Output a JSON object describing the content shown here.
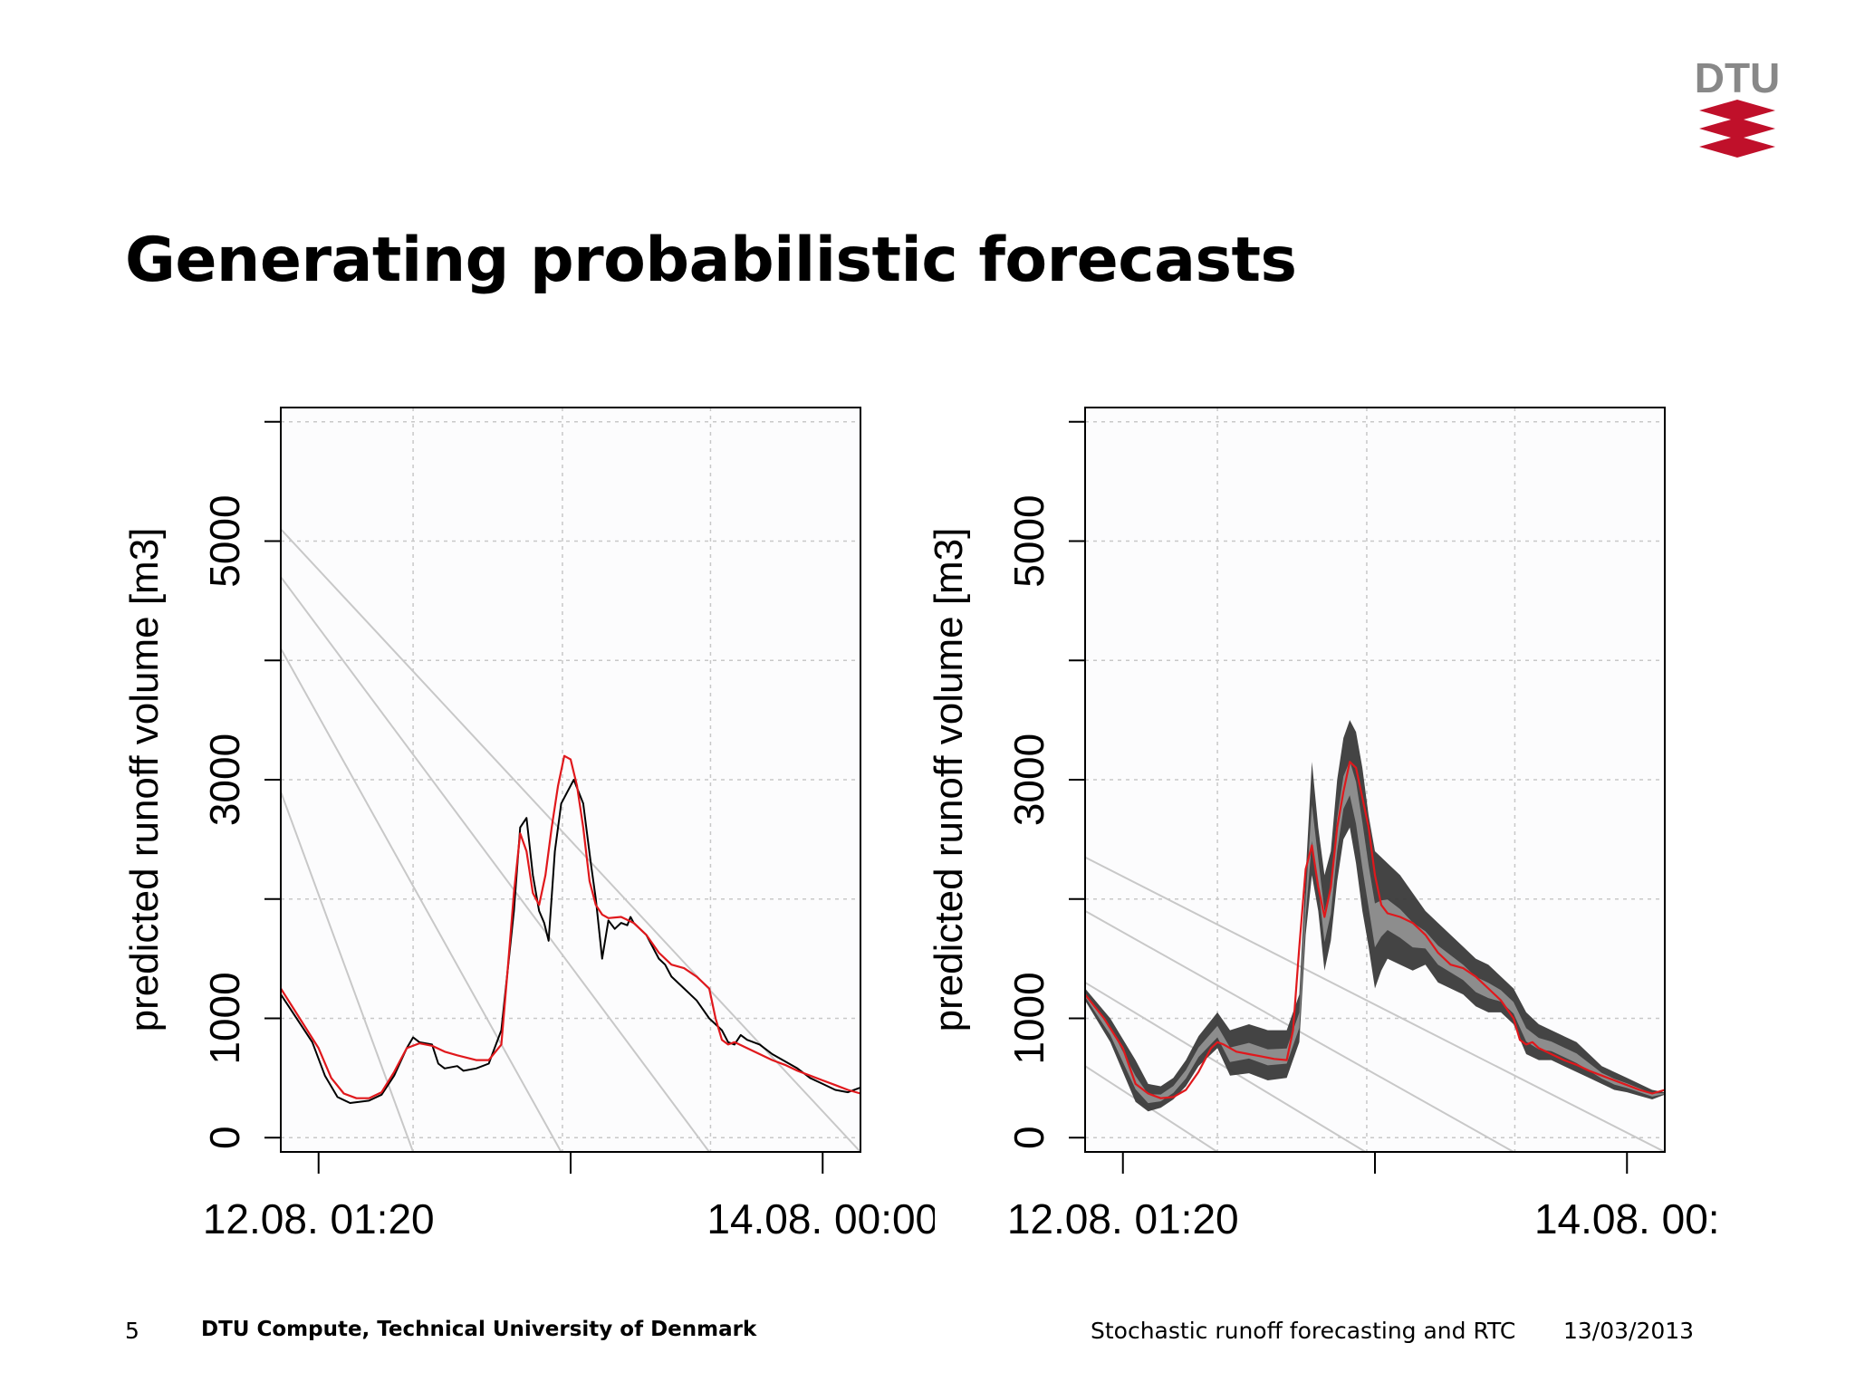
{
  "slide": {
    "title": "Generating probabilistic forecasts",
    "logo_text": "DTU",
    "page_number": "5",
    "organization": "DTU Compute, Technical University of Denmark",
    "talk_title": "Stochastic runoff forecasting and RTC",
    "date": "13/03/2013"
  },
  "colors": {
    "observed": "#000000",
    "forecast": "#e0181c",
    "ensemble": "#555555",
    "guide_lines": "#c8c8c8",
    "grid": "#c8c8c8",
    "logo_red": "#c0102a",
    "logo_gray": "#888888"
  },
  "chart_data": [
    {
      "type": "line",
      "ylabel": "predicted runoff volume [m3]",
      "ylim": [
        -120,
        6120
      ],
      "y_ticks": [
        0,
        1000,
        2000,
        3000,
        4000,
        5000,
        6000
      ],
      "y_tick_labels": [
        "0",
        "1000",
        "",
        "3000",
        "",
        "5000",
        ""
      ],
      "xlim": [
        -6,
        86
      ],
      "x_ticks": [
        0,
        40,
        80
      ],
      "x_tick_labels": [
        "12.08. 01:20",
        "",
        "14.08. 00:00"
      ],
      "x_grid": [
        15,
        38.7,
        62.2,
        86
      ],
      "grid": true,
      "guide_lines": [
        {
          "start": [
            -6,
            5100
          ],
          "end": [
            86,
            -120
          ]
        },
        {
          "start": [
            -6,
            4700
          ],
          "end": [
            62,
            -120
          ]
        },
        {
          "start": [
            -6,
            4100
          ],
          "end": [
            38.5,
            -120
          ]
        },
        {
          "start": [
            -6,
            2900
          ],
          "end": [
            15,
            -120
          ]
        }
      ],
      "series": [
        {
          "role": "observed",
          "x": [
            -6,
            -3,
            -1,
            1,
            3,
            5,
            8,
            10,
            12,
            14,
            15,
            16,
            18,
            19,
            20,
            22,
            23,
            25,
            27,
            29,
            31,
            32,
            33,
            34,
            35,
            35.8,
            36.5,
            37.5,
            38.5,
            39.5,
            40.5,
            42,
            43.2,
            44,
            45,
            46,
            47,
            48,
            49,
            49.5,
            50,
            51,
            52,
            54,
            55,
            56,
            58,
            60,
            62,
            64,
            65,
            66,
            67,
            68,
            70,
            72,
            74,
            76,
            78,
            80,
            82,
            84,
            86
          ],
          "y": [
            1200,
            960,
            800,
            520,
            340,
            290,
            310,
            360,
            520,
            750,
            840,
            800,
            780,
            620,
            580,
            600,
            560,
            580,
            620,
            900,
            1900,
            2600,
            2680,
            2200,
            1900,
            1800,
            1650,
            2400,
            2800,
            2900,
            3000,
            2800,
            2300,
            2000,
            1500,
            1820,
            1750,
            1800,
            1780,
            1850,
            1800,
            1750,
            1700,
            1500,
            1450,
            1350,
            1250,
            1150,
            1000,
            900,
            800,
            780,
            860,
            820,
            780,
            700,
            640,
            580,
            500,
            450,
            400,
            380,
            420
          ]
        },
        {
          "role": "forecast",
          "x": [
            -6,
            -3,
            0,
            2,
            4,
            6,
            8,
            10,
            12,
            14,
            16,
            18,
            20,
            22,
            25,
            27,
            29,
            30,
            31,
            32,
            33,
            34,
            35,
            36,
            37,
            38,
            39,
            40,
            41,
            42,
            43,
            44,
            45,
            46,
            48,
            50,
            52,
            54,
            56,
            58,
            60,
            62,
            63,
            64,
            65,
            66,
            68,
            70,
            72,
            74,
            76,
            78,
            80,
            82,
            84,
            86
          ],
          "y": [
            1250,
            1000,
            750,
            500,
            370,
            330,
            330,
            380,
            550,
            750,
            790,
            770,
            720,
            690,
            650,
            650,
            780,
            1400,
            2050,
            2550,
            2400,
            2050,
            1950,
            2200,
            2600,
            2950,
            3200,
            3170,
            2950,
            2600,
            2150,
            1950,
            1870,
            1840,
            1850,
            1800,
            1700,
            1550,
            1450,
            1420,
            1350,
            1250,
            1000,
            820,
            780,
            800,
            750,
            700,
            650,
            610,
            560,
            520,
            480,
            440,
            400,
            370
          ]
        }
      ]
    },
    {
      "type": "line",
      "ylabel": "predicted runoff volume [m3]",
      "ylim": [
        -120,
        6120
      ],
      "y_ticks": [
        0,
        1000,
        2000,
        3000,
        4000,
        5000,
        6000
      ],
      "y_tick_labels": [
        "0",
        "1000",
        "",
        "3000",
        "",
        "5000",
        ""
      ],
      "xlim": [
        -6,
        86
      ],
      "x_ticks": [
        0,
        40,
        80
      ],
      "x_tick_labels": [
        "12.08. 01:20",
        "",
        "14.08. 00:"
      ],
      "x_grid": [
        15,
        38.7,
        62.2,
        86
      ],
      "grid": true,
      "guide_lines": [
        {
          "start": [
            -6,
            2350
          ],
          "end": [
            86,
            -120
          ]
        },
        {
          "start": [
            -6,
            1900
          ],
          "end": [
            62,
            -120
          ]
        },
        {
          "start": [
            -6,
            1300
          ],
          "end": [
            38.5,
            -120
          ]
        },
        {
          "start": [
            -6,
            600
          ],
          "end": [
            15,
            -120
          ]
        }
      ],
      "series": [
        {
          "role": "ensemble_upper",
          "x": [
            -6,
            -2,
            2,
            4,
            6,
            8,
            10,
            12,
            15,
            17,
            20,
            23,
            26,
            28,
            29,
            30,
            31,
            32,
            33,
            34,
            35,
            36,
            37,
            38,
            39,
            40,
            41,
            42,
            44,
            46,
            48,
            50,
            52,
            54,
            56,
            58,
            60,
            62,
            64,
            66,
            68,
            70,
            72,
            74,
            76,
            78,
            80,
            82,
            84,
            86
          ],
          "y": [
            1250,
            1000,
            650,
            450,
            430,
            500,
            650,
            850,
            1050,
            900,
            950,
            900,
            900,
            1200,
            2200,
            3150,
            2600,
            2200,
            2400,
            3000,
            3350,
            3500,
            3400,
            3100,
            2700,
            2400,
            2350,
            2300,
            2200,
            2050,
            1900,
            1800,
            1700,
            1600,
            1500,
            1450,
            1350,
            1250,
            1050,
            950,
            900,
            850,
            800,
            700,
            600,
            550,
            500,
            450,
            400,
            380
          ]
        },
        {
          "role": "ensemble_lower",
          "x": [
            -6,
            -2,
            2,
            4,
            6,
            8,
            10,
            12,
            15,
            17,
            20,
            23,
            26,
            28,
            29,
            30,
            31,
            32,
            33,
            34,
            35,
            36,
            37,
            38,
            39,
            40,
            41,
            42,
            44,
            46,
            48,
            50,
            52,
            54,
            56,
            58,
            60,
            62,
            64,
            66,
            68,
            70,
            72,
            74,
            76,
            78,
            80,
            82,
            84,
            86
          ],
          "y": [
            1150,
            800,
            300,
            220,
            250,
            320,
            430,
            600,
            750,
            520,
            540,
            480,
            500,
            800,
            1700,
            2200,
            1900,
            1400,
            1650,
            2150,
            2500,
            2600,
            2300,
            1900,
            1600,
            1250,
            1400,
            1500,
            1450,
            1400,
            1450,
            1300,
            1250,
            1200,
            1100,
            1050,
            1050,
            950,
            700,
            650,
            650,
            600,
            550,
            500,
            450,
            400,
            380,
            350,
            320,
            360
          ]
        },
        {
          "role": "forecast",
          "x": [
            -6,
            -3,
            0,
            2,
            4,
            6,
            8,
            10,
            12,
            14,
            15,
            16,
            18,
            20,
            22,
            24,
            26,
            27,
            28,
            29,
            30,
            31,
            32,
            33,
            34,
            35,
            36,
            37,
            38,
            39,
            40,
            41,
            42,
            44,
            46,
            48,
            50,
            52,
            54,
            56,
            58,
            60,
            62,
            63,
            64,
            65,
            66,
            68,
            70,
            72,
            74,
            76,
            78,
            80,
            82,
            84,
            86
          ],
          "y": [
            1200,
            1000,
            750,
            450,
            370,
            330,
            340,
            400,
            550,
            750,
            800,
            780,
            720,
            700,
            680,
            660,
            650,
            900,
            1600,
            2250,
            2450,
            2100,
            1850,
            2100,
            2600,
            2900,
            3150,
            3100,
            2850,
            2600,
            2200,
            1950,
            1880,
            1850,
            1800,
            1700,
            1550,
            1450,
            1420,
            1350,
            1250,
            1150,
            1000,
            820,
            780,
            800,
            750,
            700,
            650,
            610,
            560,
            520,
            480,
            440,
            400,
            370,
            400
          ]
        }
      ]
    }
  ]
}
